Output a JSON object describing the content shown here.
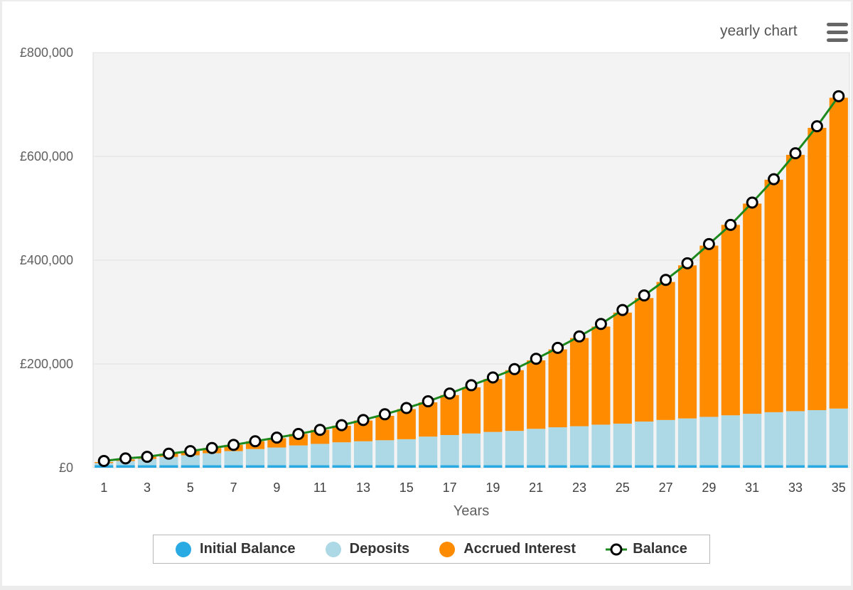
{
  "header": {
    "chart_label": "yearly chart",
    "menu_icon": "hamburger-menu-icon"
  },
  "colors": {
    "initial": "#29aae2",
    "deposits": "#add8e6",
    "interest": "#ff8c00",
    "balance_line": "#1e8a1e",
    "plot_bg": "#f3f3f3"
  },
  "chart_data": {
    "type": "bar",
    "stacked": true,
    "x": [
      1,
      2,
      3,
      4,
      5,
      6,
      7,
      8,
      9,
      10,
      11,
      12,
      13,
      14,
      15,
      16,
      17,
      18,
      19,
      20,
      21,
      22,
      23,
      24,
      25,
      26,
      27,
      28,
      29,
      30,
      31,
      32,
      33,
      34,
      35
    ],
    "xticks": [
      "1",
      "3",
      "5",
      "7",
      "9",
      "11",
      "13",
      "15",
      "17",
      "19",
      "21",
      "23",
      "25",
      "27",
      "29",
      "31",
      "33",
      "35"
    ],
    "xlabel": "Years",
    "ylabel": "",
    "ylim": [
      0,
      800000
    ],
    "yticks": [
      "£0",
      "£200,000",
      "£400,000",
      "£600,000",
      "£800,000"
    ],
    "ytick_values": [
      0,
      200000,
      400000,
      600000,
      800000
    ],
    "grid": true,
    "legend_position": "bottom",
    "series": [
      {
        "name": "Initial Balance",
        "type": "bar",
        "values": [
          5000,
          5000,
          5000,
          5000,
          5000,
          5000,
          5000,
          5000,
          5000,
          5000,
          5000,
          5000,
          5000,
          5000,
          5000,
          5000,
          5000,
          5000,
          5000,
          5000,
          5000,
          5000,
          5000,
          5000,
          5000,
          5000,
          5000,
          5000,
          5000,
          5000,
          5000,
          5000,
          5000,
          5000,
          5000
        ]
      },
      {
        "name": "Deposits",
        "type": "bar",
        "values": [
          4000,
          8000,
          12000,
          16000,
          19000,
          23000,
          27000,
          31000,
          34000,
          38000,
          41000,
          44000,
          46000,
          48000,
          50000,
          55000,
          58000,
          61000,
          64000,
          66000,
          70000,
          73000,
          75000,
          78000,
          80000,
          84000,
          87000,
          90000,
          93000,
          96000,
          99000,
          102000,
          104000,
          106000,
          109000
        ]
      },
      {
        "name": "Accrued Interest",
        "type": "bar",
        "values": [
          2000,
          3000,
          4000,
          6000,
          8000,
          10000,
          12000,
          15000,
          18000,
          22000,
          27000,
          32000,
          40000,
          47000,
          58000,
          66000,
          77000,
          89000,
          102000,
          117000,
          132000,
          150000,
          170000,
          189000,
          214000,
          238000,
          266000,
          295000,
          330000,
          367000,
          405000,
          448000,
          494000,
          544000,
          599000
        ]
      },
      {
        "name": "Balance",
        "type": "line",
        "values": [
          13000,
          18000,
          21000,
          27000,
          32000,
          38000,
          44000,
          51000,
          58000,
          65000,
          73000,
          82000,
          92000,
          103000,
          115000,
          128000,
          143000,
          159000,
          174000,
          190000,
          210000,
          231000,
          253000,
          277000,
          304000,
          332000,
          362000,
          394000,
          431000,
          468000,
          511000,
          556000,
          606000,
          658000,
          716000
        ]
      }
    ]
  }
}
